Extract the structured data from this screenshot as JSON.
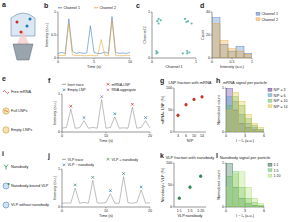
{
  "chart_data": [
    {
      "type": "diagram",
      "panel": "a"
    },
    {
      "type": "line",
      "panel": "b",
      "xlabel": "Time (s)",
      "ylabel": "Intensity (a.u.)",
      "x": [
        0,
        0.5,
        1,
        1.5,
        2,
        2.5,
        3,
        3.5,
        4,
        4.5,
        5,
        5.5,
        6,
        6.5,
        7,
        7.5,
        8,
        8.5,
        9,
        9.5,
        10
      ],
      "xlim": [
        0,
        10
      ],
      "xticks": [
        0,
        5,
        10
      ],
      "ylim": [
        0,
        1
      ],
      "yticks": [
        0,
        0.5,
        1
      ],
      "series": [
        {
          "name": "Channel 1",
          "color": "#3b6fb6",
          "values": [
            0.1,
            0.12,
            0.1,
            0.85,
            0.15,
            0.1,
            0.12,
            0.1,
            0.11,
            0.7,
            0.12,
            0.1,
            0.1,
            0.13,
            0.1,
            0.9,
            0.12,
            0.1,
            0.11,
            0.1,
            0.12
          ]
        },
        {
          "name": "Channel 2",
          "color": "#e69f2d",
          "values": [
            0.05,
            0.06,
            0.05,
            0.75,
            0.07,
            0.05,
            0.06,
            0.05,
            0.05,
            0.06,
            0.05,
            0.05,
            0.4,
            0.06,
            0.05,
            0.8,
            0.06,
            0.05,
            0.05,
            0.06,
            0.05
          ]
        }
      ]
    },
    {
      "type": "scatter",
      "panel": "c",
      "xlabel": "Channel 1",
      "ylabel": "Channel 2",
      "xlim": [
        0,
        1
      ],
      "xticks": [
        0,
        1
      ],
      "ylim": [
        0,
        1
      ],
      "yticks": [
        0,
        1
      ],
      "series": [
        {
          "color": "#2a9d8f",
          "x": [
            0.1,
            0.12,
            0.15,
            0.8,
            0.82,
            0.75,
            0.1,
            0.85,
            0.2,
            0.78,
            0.13,
            0.7,
            0.9,
            0.15,
            0.8
          ],
          "values": [
            0.1,
            0.8,
            0.75,
            0.1,
            0.8,
            0.85,
            0.15,
            0.12,
            0.82,
            0.78,
            0.12,
            0.1,
            0.75,
            0.85,
            0.15
          ]
        }
      ]
    },
    {
      "type": "histogram",
      "panel": "d",
      "xlabel": "Intensity (a.u.)",
      "ylabel": "Count",
      "bins": [
        0,
        0.2,
        0.4,
        0.6,
        0.8,
        1
      ],
      "xlim": [
        0,
        1
      ],
      "xticks": [
        0,
        0.5,
        1
      ],
      "ylim": [
        0,
        40
      ],
      "yticks": [
        0,
        20,
        40
      ],
      "series": [
        {
          "name": "Channel 1",
          "color": "#3b6fb6",
          "values": [
            35,
            12,
            6,
            10,
            4
          ]
        },
        {
          "name": "Channel 2",
          "color": "#e69f2d",
          "values": [
            30,
            15,
            8,
            6,
            3
          ]
        }
      ]
    },
    {
      "type": "diagram",
      "panel": "e",
      "labels": [
        "Free mRNA",
        "Full LNPs",
        "Empty LNPs"
      ]
    },
    {
      "type": "line",
      "panel": "f",
      "xlabel": "Time (s)",
      "ylabel": "Intensity (a.u.)",
      "x": [
        0,
        1,
        2,
        3,
        4,
        5,
        6,
        7,
        8,
        9,
        10,
        11,
        12,
        13,
        14,
        15,
        16,
        17,
        18,
        19,
        20
      ],
      "xlim": [
        0,
        20
      ],
      "xticks": [
        0,
        10,
        20
      ],
      "ylim": [
        0,
        1
      ],
      "yticks": [
        0,
        1
      ],
      "series": [
        {
          "name": "Inert trace",
          "color": "#8a8a8a",
          "values": [
            0.1,
            0.12,
            0.6,
            0.1,
            0.11,
            0.3,
            0.1,
            0.12,
            0.1,
            0.85,
            0.1,
            0.12,
            0.4,
            0.1,
            0.11,
            0.1,
            0.65,
            0.1,
            0.12,
            0.3,
            0.1
          ]
        },
        {
          "name": "mRNA-LNP",
          "type": "scatter",
          "marker": "x",
          "color": "#d62728",
          "values": [
            null,
            null,
            0.6,
            null,
            null,
            null,
            null,
            null,
            null,
            null,
            null,
            null,
            null,
            null,
            null,
            null,
            0.65,
            null,
            null,
            null,
            null
          ]
        },
        {
          "name": "Empty LNP",
          "type": "scatter",
          "marker": "x",
          "color": "#1f77b4",
          "values": [
            null,
            null,
            null,
            null,
            null,
            0.3,
            null,
            null,
            null,
            null,
            null,
            null,
            0.4,
            null,
            null,
            null,
            null,
            null,
            null,
            0.3,
            null
          ]
        },
        {
          "name": "RNA aggregate",
          "type": "scatter",
          "marker": "x",
          "color": "#9467bd",
          "values": [
            null,
            null,
            null,
            null,
            null,
            null,
            null,
            null,
            null,
            0.85,
            null,
            null,
            null,
            null,
            null,
            null,
            null,
            null,
            null,
            null,
            null
          ]
        }
      ]
    },
    {
      "type": "dot",
      "panel": "g",
      "title": "LNP fraction with mRNA",
      "xlabel": "N/P",
      "ylabel": "mRNA+ LNP (%)",
      "categories": [
        "3",
        "6",
        "10",
        "14"
      ],
      "values": [
        38,
        62,
        74,
        80
      ],
      "errors": [
        5,
        4,
        3,
        4
      ],
      "color": "#c0392b",
      "ylim": [
        0,
        100
      ],
      "yticks": [
        0,
        50,
        100
      ]
    },
    {
      "type": "histogram",
      "panel": "h",
      "title": "mRNA signal per particle",
      "xlabel": "I − I₀ (a.u.)",
      "ylabel": "Normalized count",
      "bins": [
        0,
        1,
        2,
        3,
        4,
        5,
        6
      ],
      "xlim": [
        0,
        6
      ],
      "xticks": [
        0,
        3,
        6
      ],
      "ylim": [
        0,
        1
      ],
      "yticks": [
        0,
        1
      ],
      "series": [
        {
          "name": "N/P = 3",
          "color": "#4b2991",
          "values": [
            1,
            0.5,
            0.2,
            0.1,
            0.05,
            0.02
          ]
        },
        {
          "name": "N/P = 6",
          "color": "#3f8fc4",
          "values": [
            0.8,
            0.7,
            0.4,
            0.2,
            0.1,
            0.05
          ]
        },
        {
          "name": "N/P = 10",
          "color": "#5ab45a",
          "values": [
            0.6,
            0.8,
            0.6,
            0.3,
            0.15,
            0.05
          ]
        },
        {
          "name": "N/P = 14",
          "color": "#d9c13a",
          "values": [
            0.5,
            0.9,
            0.7,
            0.4,
            0.2,
            0.1
          ]
        }
      ]
    },
    {
      "type": "diagram",
      "panel": "i",
      "labels": [
        "Nanobody",
        "Nanobody-bound VLP",
        "VLP without nanobody"
      ]
    },
    {
      "type": "line",
      "panel": "j",
      "xlabel": "Time (s)",
      "ylabel": "Intensity (a.u.)",
      "x": [
        0,
        1,
        2,
        3,
        4,
        5,
        6,
        7,
        8,
        9,
        10,
        11,
        12,
        13,
        14,
        15,
        16,
        17,
        18,
        19,
        20
      ],
      "xlim": [
        0,
        20
      ],
      "xticks": [
        0,
        10,
        20
      ],
      "ylim": [
        0,
        1
      ],
      "yticks": [
        0,
        1
      ],
      "series": [
        {
          "name": "VLP trace",
          "color": "#8a8a8a",
          "values": [
            0.1,
            0.11,
            0.1,
            0.5,
            0.1,
            0.12,
            0.1,
            0.7,
            0.11,
            0.1,
            0.12,
            0.35,
            0.1,
            0.1,
            0.8,
            0.11,
            0.1,
            0.12,
            0.45,
            0.1,
            0.11
          ]
        },
        {
          "name": "VLP + nanobody",
          "type": "scatter",
          "marker": "x",
          "color": "#2e8b57",
          "values": [
            null,
            null,
            null,
            0.5,
            null,
            null,
            null,
            0.7,
            null,
            null,
            null,
            null,
            null,
            null,
            0.8,
            null,
            null,
            null,
            null,
            null,
            null
          ]
        },
        {
          "name": "VLP − nanobody",
          "type": "scatter",
          "marker": "x",
          "color": "#1f77b4",
          "values": [
            null,
            null,
            null,
            null,
            null,
            null,
            null,
            null,
            null,
            null,
            null,
            0.35,
            null,
            null,
            null,
            null,
            null,
            null,
            0.45,
            null,
            null
          ]
        }
      ]
    },
    {
      "type": "dot",
      "panel": "k",
      "title": "VLP fraction with nanobody",
      "xlabel": "VLP:nanobody",
      "ylabel": "Nanobody+ VLP (%)",
      "categories": [
        "1:1",
        "1:5",
        "1:20"
      ],
      "values": [
        20,
        45,
        70
      ],
      "errors": [
        4,
        5,
        4
      ],
      "color": "#2e8b57",
      "ylim": [
        0,
        100
      ],
      "yticks": [
        0,
        50,
        100
      ]
    },
    {
      "type": "histogram",
      "panel": "l",
      "title": "Nanobody signal per particle",
      "xlabel": "I − I₀ (a.u.)",
      "ylabel": "Normalized count",
      "bins": [
        0,
        1,
        2,
        3,
        4,
        5,
        6
      ],
      "xlim": [
        0,
        6
      ],
      "xticks": [
        0,
        3,
        6
      ],
      "ylim": [
        0,
        1
      ],
      "yticks": [
        0,
        1
      ],
      "series": [
        {
          "name": "1:1",
          "color": "#1b5e3b",
          "values": [
            1,
            0.45,
            0.2,
            0.08,
            0.04,
            0.02
          ]
        },
        {
          "name": "1:5",
          "color": "#5ab45a",
          "values": [
            0.7,
            0.8,
            0.45,
            0.2,
            0.1,
            0.04
          ]
        },
        {
          "name": "1:20",
          "color": "#a6d96a",
          "values": [
            0.45,
            0.75,
            0.8,
            0.45,
            0.2,
            0.08
          ]
        }
      ]
    }
  ]
}
